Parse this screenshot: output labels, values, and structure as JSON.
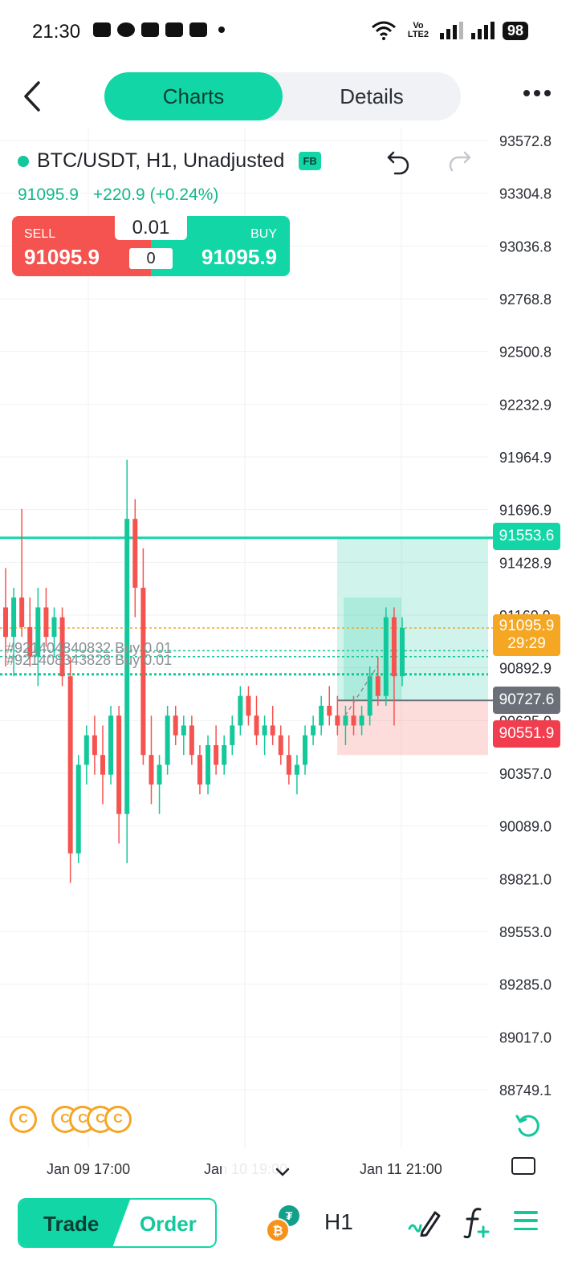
{
  "status_bar": {
    "time": "21:30",
    "network": "Vo LTE2",
    "battery": "98"
  },
  "header": {
    "tabs": [
      {
        "label": "Charts",
        "active": true
      },
      {
        "label": "Details",
        "active": false
      }
    ]
  },
  "chart": {
    "symbol": "BTC/USDT, H1, Unadjusted",
    "badge": "FB",
    "last_price": "91095.9",
    "change": "+220.9 (+0.24%)",
    "trade_widget": {
      "sell_label": "SELL",
      "sell_price": "91095.9",
      "buy_label": "BUY",
      "buy_price": "91095.9",
      "lot_size": "0.01",
      "spread": "0"
    },
    "price_axis": [
      "93572.8",
      "93304.8",
      "93036.8",
      "92768.8",
      "92500.8",
      "92232.9",
      "91964.9",
      "91696.9",
      "91428.9",
      "91160.9",
      "90892.9",
      "90625.0",
      "90357.0",
      "90089.0",
      "89821.0",
      "89553.0",
      "89285.0",
      "89017.0",
      "88749.1"
    ],
    "order_labels": [
      "#921404840832 Buy 0.01",
      "#921408343828 Buy 0.01"
    ],
    "tags": {
      "take_profit": "91553.6",
      "current_price": "91095.9",
      "countdown": "29:29",
      "open_price": "90727.6",
      "stop_loss": "90551.9"
    },
    "time_axis": [
      "Jan 09 17:00",
      "Jan 10 19:00",
      "Jan 11 21:00"
    ],
    "colors": {
      "bull": "#13c89a",
      "bear": "#f5534f",
      "accent": "#13d6a7",
      "current": "#f5a623",
      "stop_loss": "#f23d4f"
    }
  },
  "bottom_bar": {
    "trade_label": "Trade",
    "order_label": "Order",
    "timeframe": "H1"
  },
  "chart_data": {
    "type": "candlestick",
    "y_axis_ticks": [
      93572.8,
      93304.8,
      93036.8,
      92768.8,
      92500.8,
      92232.9,
      91964.9,
      91696.9,
      91428.9,
      91160.9,
      90892.9,
      90625.0,
      90357.0,
      90089.0,
      89821.0,
      89553.0,
      89285.0,
      89017.0,
      88749.1
    ],
    "x_axis_ticks": [
      "Jan 09 17:00",
      "Jan 10 19:00",
      "Jan 11 21:00"
    ],
    "ylim": [
      88749.1,
      93572.8
    ],
    "levels": {
      "take_profit": 91553.6,
      "current": 91095.9,
      "open": 90727.6,
      "stop_loss": 90551.9
    },
    "candles": [
      {
        "o": 91200,
        "h": 91400,
        "l": 90900,
        "c": 91050
      },
      {
        "o": 91050,
        "h": 91300,
        "l": 90850,
        "c": 91250
      },
      {
        "o": 91250,
        "h": 91700,
        "l": 91050,
        "c": 91100
      },
      {
        "o": 91100,
        "h": 91250,
        "l": 90900,
        "c": 90950
      },
      {
        "o": 90950,
        "h": 91300,
        "l": 90800,
        "c": 91200
      },
      {
        "o": 91200,
        "h": 91300,
        "l": 91000,
        "c": 91050
      },
      {
        "o": 91050,
        "h": 91200,
        "l": 90950,
        "c": 91150
      },
      {
        "o": 91150,
        "h": 91200,
        "l": 90800,
        "c": 90850
      },
      {
        "o": 90850,
        "h": 90950,
        "l": 89800,
        "c": 89950
      },
      {
        "o": 89950,
        "h": 90450,
        "l": 89900,
        "c": 90400
      },
      {
        "o": 90400,
        "h": 90600,
        "l": 90300,
        "c": 90550
      },
      {
        "o": 90550,
        "h": 90650,
        "l": 90350,
        "c": 90450
      },
      {
        "o": 90450,
        "h": 90600,
        "l": 90200,
        "c": 90350
      },
      {
        "o": 90350,
        "h": 90700,
        "l": 90300,
        "c": 90650
      },
      {
        "o": 90650,
        "h": 90700,
        "l": 90000,
        "c": 90150
      },
      {
        "o": 90150,
        "h": 91950,
        "l": 89900,
        "c": 91650
      },
      {
        "o": 91650,
        "h": 91750,
        "l": 91150,
        "c": 91300
      },
      {
        "o": 91300,
        "h": 91500,
        "l": 90400,
        "c": 90450
      },
      {
        "o": 90450,
        "h": 90650,
        "l": 90200,
        "c": 90300
      },
      {
        "o": 90300,
        "h": 90450,
        "l": 90150,
        "c": 90400
      },
      {
        "o": 90400,
        "h": 90700,
        "l": 90350,
        "c": 90650
      },
      {
        "o": 90650,
        "h": 90700,
        "l": 90500,
        "c": 90550
      },
      {
        "o": 90550,
        "h": 90650,
        "l": 90450,
        "c": 90600
      },
      {
        "o": 90600,
        "h": 90650,
        "l": 90400,
        "c": 90450
      },
      {
        "o": 90450,
        "h": 90500,
        "l": 90250,
        "c": 90300
      },
      {
        "o": 90300,
        "h": 90550,
        "l": 90250,
        "c": 90500
      },
      {
        "o": 90500,
        "h": 90600,
        "l": 90350,
        "c": 90400
      },
      {
        "o": 90400,
        "h": 90550,
        "l": 90350,
        "c": 90500
      },
      {
        "o": 90500,
        "h": 90650,
        "l": 90450,
        "c": 90600
      },
      {
        "o": 90600,
        "h": 90800,
        "l": 90550,
        "c": 90750
      },
      {
        "o": 90750,
        "h": 90800,
        "l": 90600,
        "c": 90650
      },
      {
        "o": 90650,
        "h": 90750,
        "l": 90500,
        "c": 90550
      },
      {
        "o": 90550,
        "h": 90650,
        "l": 90450,
        "c": 90600
      },
      {
        "o": 90600,
        "h": 90700,
        "l": 90500,
        "c": 90550
      },
      {
        "o": 90550,
        "h": 90600,
        "l": 90400,
        "c": 90450
      },
      {
        "o": 90450,
        "h": 90550,
        "l": 90300,
        "c": 90350
      },
      {
        "o": 90350,
        "h": 90450,
        "l": 90250,
        "c": 90400
      },
      {
        "o": 90400,
        "h": 90600,
        "l": 90350,
        "c": 90550
      },
      {
        "o": 90550,
        "h": 90650,
        "l": 90500,
        "c": 90600
      },
      {
        "o": 90600,
        "h": 90750,
        "l": 90550,
        "c": 90700
      },
      {
        "o": 90700,
        "h": 90800,
        "l": 90600,
        "c": 90650
      },
      {
        "o": 90650,
        "h": 90750,
        "l": 90550,
        "c": 90600
      },
      {
        "o": 90600,
        "h": 90700,
        "l": 90500,
        "c": 90650
      },
      {
        "o": 90650,
        "h": 90750,
        "l": 90550,
        "c": 90600
      },
      {
        "o": 90600,
        "h": 90700,
        "l": 90550,
        "c": 90650
      },
      {
        "o": 90650,
        "h": 90900,
        "l": 90600,
        "c": 90850
      },
      {
        "o": 90850,
        "h": 90950,
        "l": 90700,
        "c": 90750
      },
      {
        "o": 90750,
        "h": 91200,
        "l": 90700,
        "c": 91150
      },
      {
        "o": 91150,
        "h": 91200,
        "l": 90600,
        "c": 90850
      },
      {
        "o": 90850,
        "h": 91150,
        "l": 90800,
        "c": 91096
      }
    ]
  }
}
